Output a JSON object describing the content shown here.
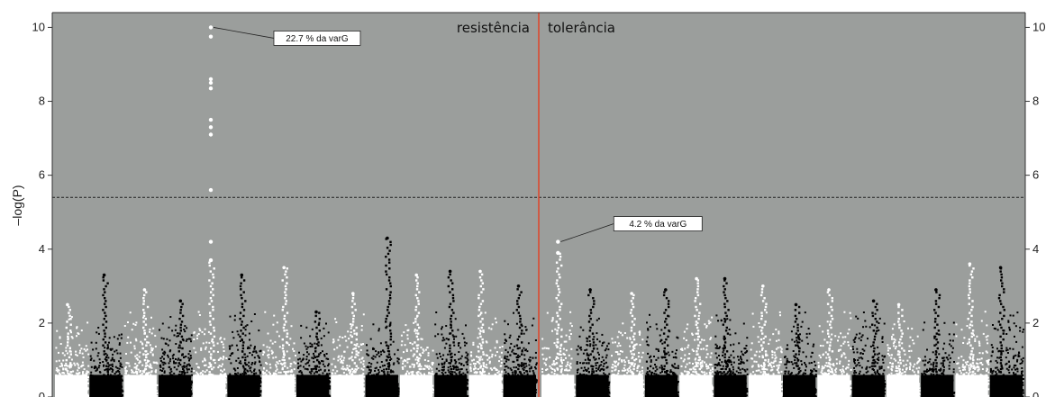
{
  "chart_data": {
    "type": "scatter",
    "title": "",
    "xlabel": "",
    "ylabel": "–log(P)",
    "ylim": [
      0,
      10.4
    ],
    "yticks": [
      0,
      2,
      4,
      6,
      8,
      10
    ],
    "y_tick_labels": [
      "0",
      "2",
      "4",
      "6",
      "8",
      "10"
    ],
    "right_axis_ticks": true,
    "threshold": 5.4,
    "background_color": "#9b9e9c",
    "divider_color": "#e0452a",
    "panels": [
      {
        "label": "resistência",
        "chromosome_peaks": [
          2.5,
          3.3,
          2.9,
          2.6,
          10.0,
          3.3,
          3.5,
          2.3,
          2.8,
          4.3,
          3.3,
          3.4,
          3.4,
          3.0
        ],
        "top_hits": [
          10.0,
          9.75,
          8.6,
          8.5,
          8.35,
          7.5,
          7.3,
          7.1,
          5.6,
          4.2,
          3.7
        ],
        "annotation": {
          "text": "22.7 % da varG",
          "chromosome_index": 4,
          "y": 10.0
        }
      },
      {
        "label": "tolerância",
        "chromosome_peaks": [
          4.2,
          2.9,
          2.8,
          2.9,
          3.2,
          3.2,
          3.0,
          2.5,
          2.9,
          2.6,
          2.5,
          2.9,
          3.6,
          3.5
        ],
        "top_hits": [
          4.2,
          3.9
        ],
        "annotation": {
          "text": "4.2 % da varG",
          "chromosome_index": 0,
          "y": 4.2
        }
      }
    ],
    "point_colors": [
      "#ffffff",
      "#000000"
    ]
  }
}
